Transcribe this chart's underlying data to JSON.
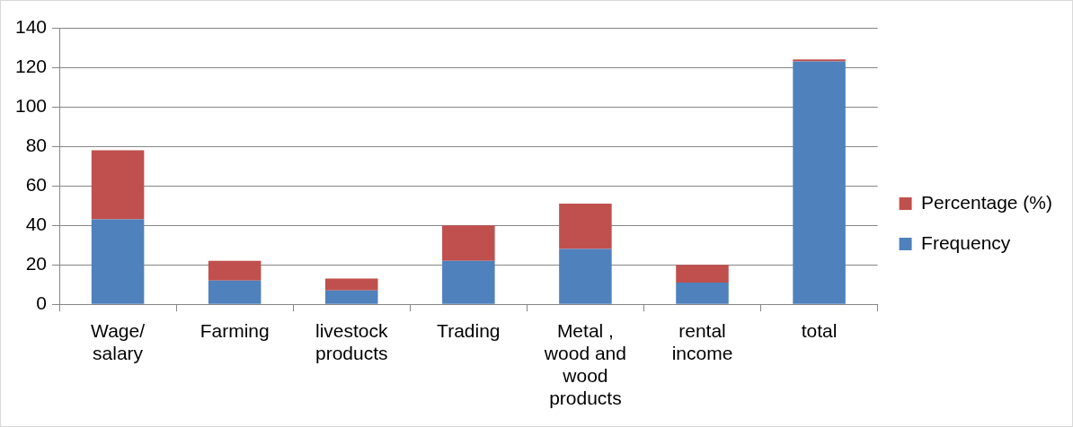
{
  "chart_data": {
    "type": "bar",
    "stacked": true,
    "categories": [
      "Wage/ salary",
      "Farming",
      "livestock products",
      "Trading",
      "Metal , wood and wood products",
      "rental income",
      "total"
    ],
    "series": [
      {
        "name": "Frequency",
        "color": "#4f81bd",
        "values": [
          43,
          12,
          7,
          22,
          28,
          11,
          123
        ]
      },
      {
        "name": "Percentage (%)",
        "color": "#c0504d",
        "values": [
          35,
          10,
          6,
          18,
          23,
          9,
          1
        ]
      }
    ],
    "ylim": [
      0,
      140
    ],
    "yticks": [
      0,
      20,
      40,
      60,
      80,
      100,
      120,
      140
    ],
    "grid": "y",
    "legend": "right"
  }
}
